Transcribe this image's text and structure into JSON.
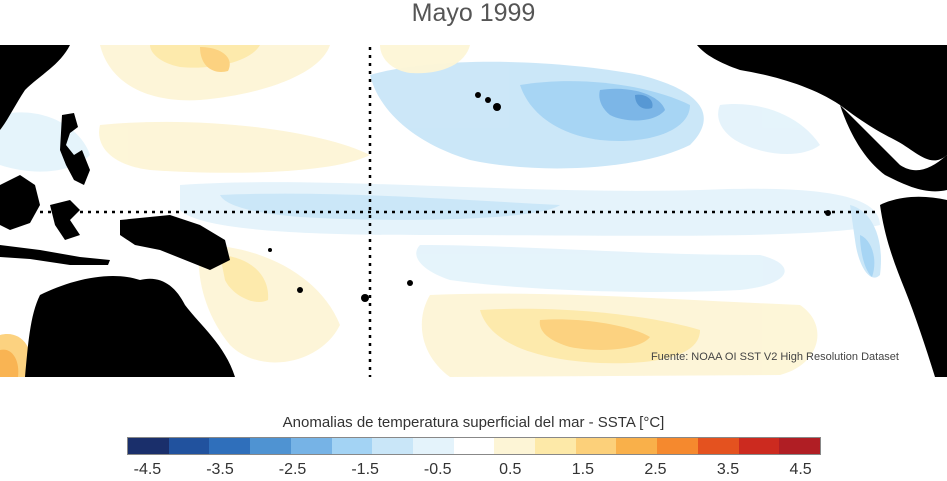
{
  "title": "Mayo 1999",
  "source": "Fuente: NOAA OI SST V2 High Resolution Dataset",
  "colorbar": {
    "title": "Anomalias de temperatura superficial del mar - SSTA  [°C]",
    "colors": [
      "#1a2f6b",
      "#21529e",
      "#2f6fbb",
      "#4f93d2",
      "#76b3e6",
      "#a3d3f4",
      "#c9e6f8",
      "#e4f3fb",
      "#ffffff",
      "#fdf5d6",
      "#fde9a8",
      "#fcd07a",
      "#f9b04a",
      "#f5892e",
      "#e4521f",
      "#cc2a1f",
      "#b01e24"
    ],
    "tick_labels": [
      "-4.5",
      "-3.5",
      "-2.5",
      "-1.5",
      "-0.5",
      "0.5",
      "1.5",
      "2.5",
      "3.5",
      "4.5"
    ]
  }
}
